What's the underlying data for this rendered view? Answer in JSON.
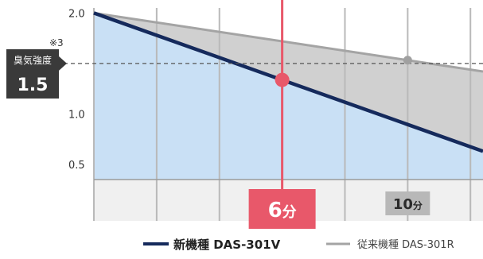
{
  "chart_data": {
    "type": "line",
    "x_unit": "分",
    "xlim": [
      0,
      12.4
    ],
    "ylim": [
      0.35,
      2.05
    ],
    "y_ticks": [
      "2.0",
      "1.0",
      "0.5"
    ],
    "y_tick_values": [
      2.0,
      1.0,
      0.5
    ],
    "reference": {
      "label": "臭気強度",
      "value": 1.5,
      "value_text": "1.5",
      "note": "※3"
    },
    "series": [
      {
        "name": "新機種 DAS-301V",
        "x": [
          0,
          12.4
        ],
        "y": [
          2.0,
          0.63
        ],
        "color": "#152a5c"
      },
      {
        "name": "従来機種 DAS-301R",
        "x": [
          0,
          12.4
        ],
        "y": [
          2.0,
          1.42
        ],
        "color": "#a4a4a4"
      }
    ],
    "callouts": [
      {
        "x": 6,
        "value": "6",
        "unit": "分",
        "color": "#e8586a"
      },
      {
        "x": 10,
        "value": "10",
        "unit": "分",
        "color": "#b8b8b8"
      }
    ],
    "colors": {
      "fill_new": "#c9e0f5",
      "fill_gap": "#d0d0d0",
      "grid": "#b9b9b9",
      "marker_line": "#e8586a",
      "label_box": "#3a3a3a"
    },
    "grid": true,
    "legend_position": "bottom-right"
  }
}
